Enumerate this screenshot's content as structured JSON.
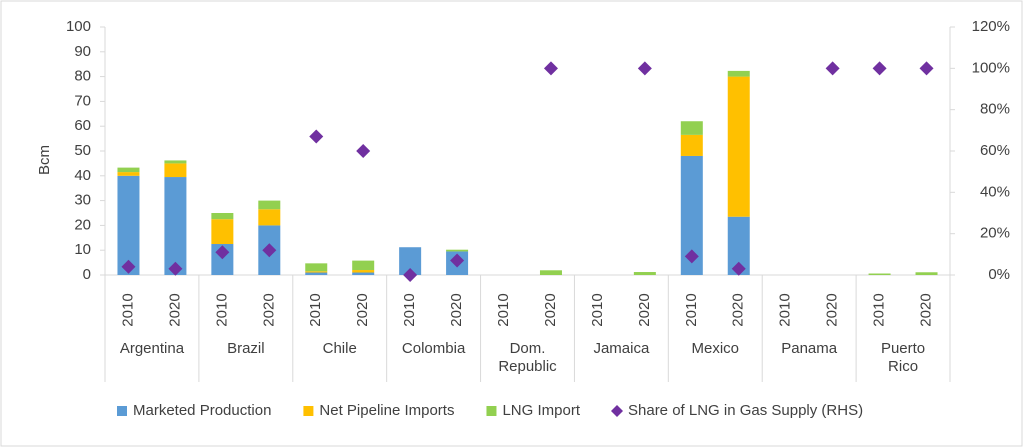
{
  "chart_data": {
    "type": "bar",
    "stacked": true,
    "y_label": "Bcm",
    "categories": [
      "2010",
      "2020",
      "2010",
      "2020",
      "2010",
      "2020",
      "2010",
      "2020",
      "2010",
      "2020",
      "2010",
      "2020",
      "2010",
      "2020",
      "2010",
      "2020",
      "2010",
      "2020"
    ],
    "groups": [
      "Argentina",
      "Brazil",
      "Chile",
      "Colombia",
      "Dom. Republic",
      "Jamaica",
      "Mexico",
      "Panama",
      "Puerto Rico"
    ],
    "ylim": [
      0,
      100
    ],
    "yticks": [
      0,
      10,
      20,
      30,
      40,
      50,
      60,
      70,
      80,
      90,
      100
    ],
    "y2lim": [
      0,
      120
    ],
    "y2ticks": [
      {
        "value": 0,
        "label": "0%"
      },
      {
        "value": 20,
        "label": "20%"
      },
      {
        "value": 40,
        "label": "40%"
      },
      {
        "value": 60,
        "label": "60%"
      },
      {
        "value": 80,
        "label": "80%"
      },
      {
        "value": 100,
        "label": "100%"
      },
      {
        "value": 120,
        "label": "120%"
      }
    ],
    "grid": false,
    "legend": "bottom",
    "series": [
      {
        "name": "Marketed Production",
        "color": "#5b9bd5",
        "values": [
          40,
          39.5,
          12.5,
          20,
          1,
          1,
          11.2,
          9.5,
          0,
          0,
          0,
          0,
          48,
          23.5,
          0,
          0,
          0,
          0
        ]
      },
      {
        "name": "Net Pipeline Imports",
        "color": "#ffc000",
        "values": [
          1.5,
          5.5,
          10,
          6.5,
          0.5,
          1,
          0,
          0,
          0,
          0,
          0,
          0,
          8.5,
          56.5,
          0,
          0,
          0,
          0
        ]
      },
      {
        "name": "LNG Import",
        "color": "#92d050",
        "values": [
          1.8,
          1.2,
          2.5,
          3.5,
          3.2,
          3.8,
          0,
          0.7,
          0,
          1.9,
          0,
          1.2,
          5.5,
          2.3,
          0,
          0,
          0.6,
          1.1
        ]
      },
      {
        "name": "Share of LNG in Gas Supply (RHS)",
        "color": "#7030a0",
        "marker": "diamond",
        "axis": "y2",
        "values": [
          4,
          3,
          11,
          12,
          67,
          60,
          0,
          7,
          null,
          100,
          null,
          100,
          9,
          3,
          null,
          100,
          100,
          100
        ]
      }
    ]
  }
}
